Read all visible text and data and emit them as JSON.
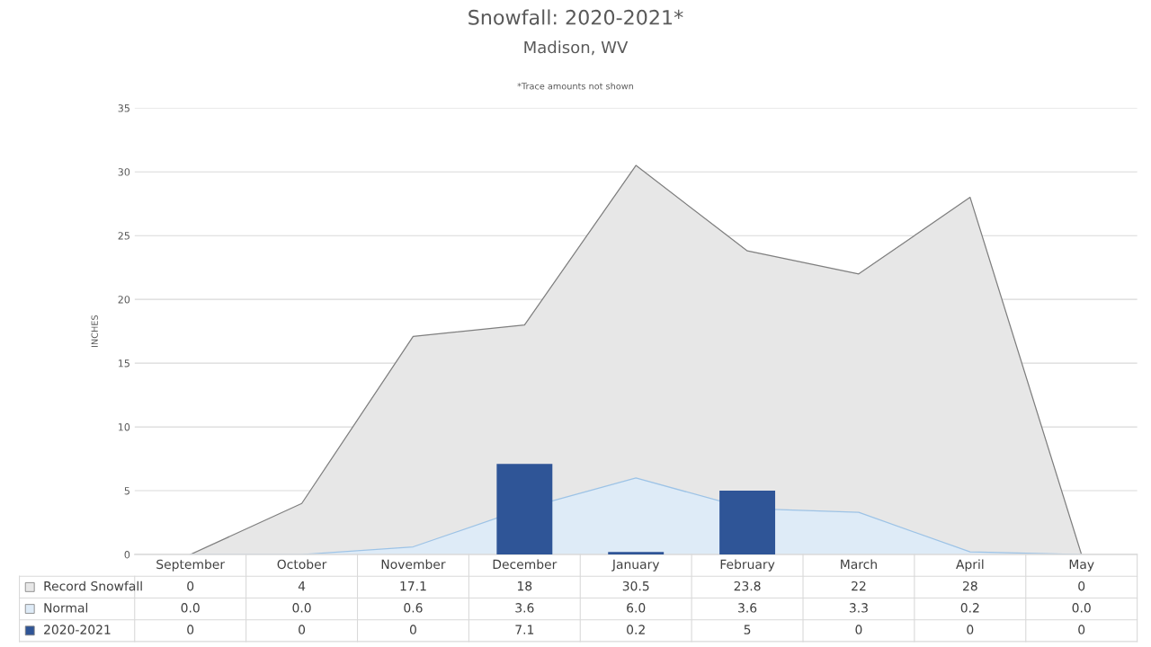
{
  "chart_data": {
    "type": "bar",
    "title": "Snowfall: 2020-2021*",
    "subtitle": "Madison, WV",
    "ylabel": "INCHES",
    "annotations": [
      "*Trace amounts not shown"
    ],
    "categories": [
      "September",
      "October",
      "November",
      "December",
      "January",
      "February",
      "March",
      "April",
      "May"
    ],
    "series": [
      {
        "name": "Record Snowfall",
        "type": "area",
        "color": "#e7e7e7",
        "values": [
          0,
          4,
          17.1,
          18,
          30.5,
          23.8,
          22,
          28,
          0
        ],
        "value_labels": [
          "0",
          "4",
          "17.1",
          "18",
          "30.5",
          "23.8",
          "22",
          "28",
          "0"
        ]
      },
      {
        "name": "Normal",
        "type": "area",
        "color": "#deebf7",
        "values": [
          0.0,
          0.0,
          0.6,
          3.6,
          6.0,
          3.6,
          3.3,
          0.2,
          0.0
        ],
        "value_labels": [
          "0.0",
          "0.0",
          "0.6",
          "3.6",
          "6.0",
          "3.6",
          "3.3",
          "0.2",
          "0.0"
        ]
      },
      {
        "name": "2020-2021",
        "color": "#2f5597",
        "values": [
          0,
          0,
          0,
          7.1,
          0.2,
          5,
          0,
          0,
          0
        ],
        "value_labels": [
          "0",
          "0",
          "0",
          "7.1",
          "0.2",
          "5",
          "0",
          "0",
          "0"
        ]
      }
    ],
    "ylim": [
      0,
      35
    ],
    "yticks": [
      0,
      5,
      10,
      15,
      20,
      25,
      30,
      35
    ],
    "grid": "y",
    "legend": "bottom"
  }
}
